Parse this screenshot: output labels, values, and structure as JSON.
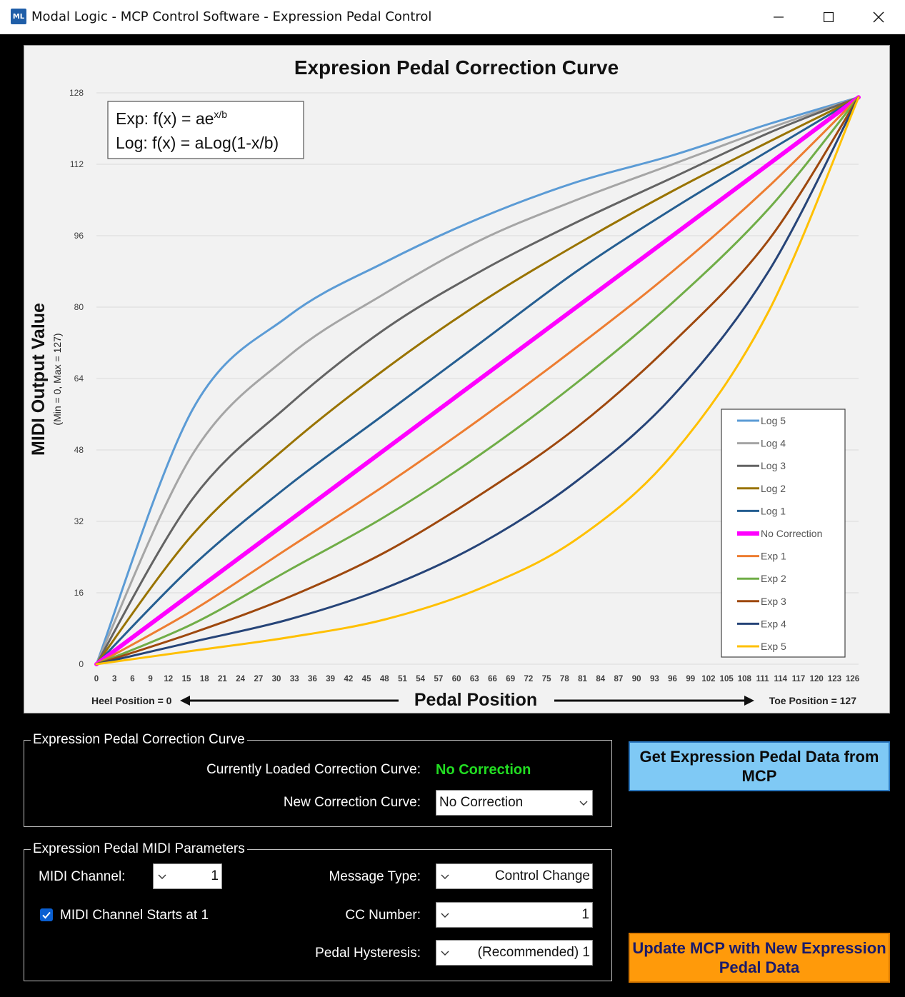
{
  "window": {
    "title": "Modal Logic - MCP Control Software - Expression Pedal Control",
    "icon": "mcp-app-icon",
    "controls": [
      "minimize-icon",
      "maximize-icon",
      "close-icon"
    ]
  },
  "chart_data": {
    "type": "line",
    "title": "Expresion Pedal Correction Curve",
    "ylabel": "MIDI Output Value",
    "ylabel_sub": "(Min = 0, Max = 127)",
    "xlabel": "Pedal Position",
    "x_left_note": "Heel Position = 0",
    "x_right_note": "Toe Position = 127",
    "formula_exp_prefix": "Exp: f(x) = ae",
    "formula_exp_sup": "x/b",
    "formula_log": "Log: f(x) = aLog(1-x/b)",
    "xlim": [
      0,
      127
    ],
    "ylim": [
      0,
      128
    ],
    "yticks": [
      0,
      16,
      32,
      48,
      64,
      80,
      96,
      112,
      128
    ],
    "xticks": [
      0,
      3,
      6,
      9,
      12,
      15,
      18,
      21,
      24,
      27,
      30,
      33,
      36,
      39,
      42,
      45,
      48,
      51,
      54,
      57,
      60,
      63,
      66,
      69,
      72,
      75,
      78,
      81,
      84,
      87,
      90,
      93,
      96,
      99,
      102,
      105,
      108,
      111,
      114,
      117,
      120,
      123,
      126
    ],
    "grid": true,
    "legend_position": "bottom-right",
    "x": [
      0,
      16,
      32,
      48,
      64,
      80,
      96,
      112,
      127
    ],
    "series": [
      {
        "name": "Log 5",
        "color": "#5b9bd5",
        "width": 3,
        "values": [
          0,
          57,
          78,
          90,
          100,
          108,
          114,
          121,
          127
        ]
      },
      {
        "name": "Log 4",
        "color": "#a5a5a5",
        "width": 3,
        "values": [
          0,
          47,
          69,
          83,
          95,
          104,
          112,
          120,
          127
        ]
      },
      {
        "name": "Log 3",
        "color": "#636363",
        "width": 3,
        "values": [
          0,
          37,
          58,
          75,
          88,
          99,
          109,
          119,
          127
        ]
      },
      {
        "name": "Log 2",
        "color": "#997300",
        "width": 3,
        "values": [
          0,
          29,
          49,
          66,
          81,
          94,
          106,
          117,
          127
        ]
      },
      {
        "name": "Log 1",
        "color": "#255e91",
        "width": 3,
        "values": [
          0,
          22,
          40,
          56,
          72,
          88,
          102,
          115,
          127
        ]
      },
      {
        "name": "No Correction",
        "color": "#ff00ff",
        "width": 6,
        "values": [
          0,
          16,
          32,
          48,
          64,
          80,
          96,
          112,
          127
        ]
      },
      {
        "name": "Exp 1",
        "color": "#ed7d31",
        "width": 3,
        "values": [
          0,
          12,
          26,
          40,
          55,
          71,
          88,
          107,
          127
        ]
      },
      {
        "name": "Exp 2",
        "color": "#70ad47",
        "width": 3,
        "values": [
          0,
          9,
          21,
          33,
          47,
          63,
          81,
          102,
          127
        ]
      },
      {
        "name": "Exp 3",
        "color": "#9e480e",
        "width": 3,
        "values": [
          0,
          7,
          15,
          25,
          38,
          53,
          72,
          95,
          127
        ]
      },
      {
        "name": "Exp 4",
        "color": "#264478",
        "width": 3,
        "values": [
          0,
          5,
          10,
          17,
          27,
          41,
          60,
          88,
          127
        ]
      },
      {
        "name": "Exp 5",
        "color": "#ffc000",
        "width": 3,
        "values": [
          0,
          3,
          6,
          10,
          17,
          28,
          47,
          79,
          127
        ]
      }
    ]
  },
  "curve_group": {
    "title": "Expression Pedal Correction Curve",
    "current_label": "Currently Loaded Correction Curve:",
    "current_value": "No Correction",
    "new_label": "New Correction Curve:",
    "new_value": "No Correction"
  },
  "midi_group": {
    "title": "Expression Pedal MIDI Parameters",
    "channel_label": "MIDI Channel:",
    "channel_value": "1",
    "starts_at_1_label": "MIDI Channel Starts at 1",
    "starts_at_1_checked": true,
    "message_type_label": "Message Type:",
    "message_type_value": "Control Change",
    "cc_number_label": "CC Number:",
    "cc_number_value": "1",
    "hysteresis_label": "Pedal Hysteresis:",
    "hysteresis_value": "(Recommended) 1"
  },
  "buttons": {
    "get_data": "Get Expression Pedal Data from MCP",
    "update": "Update MCP with New Expression Pedal Data"
  }
}
